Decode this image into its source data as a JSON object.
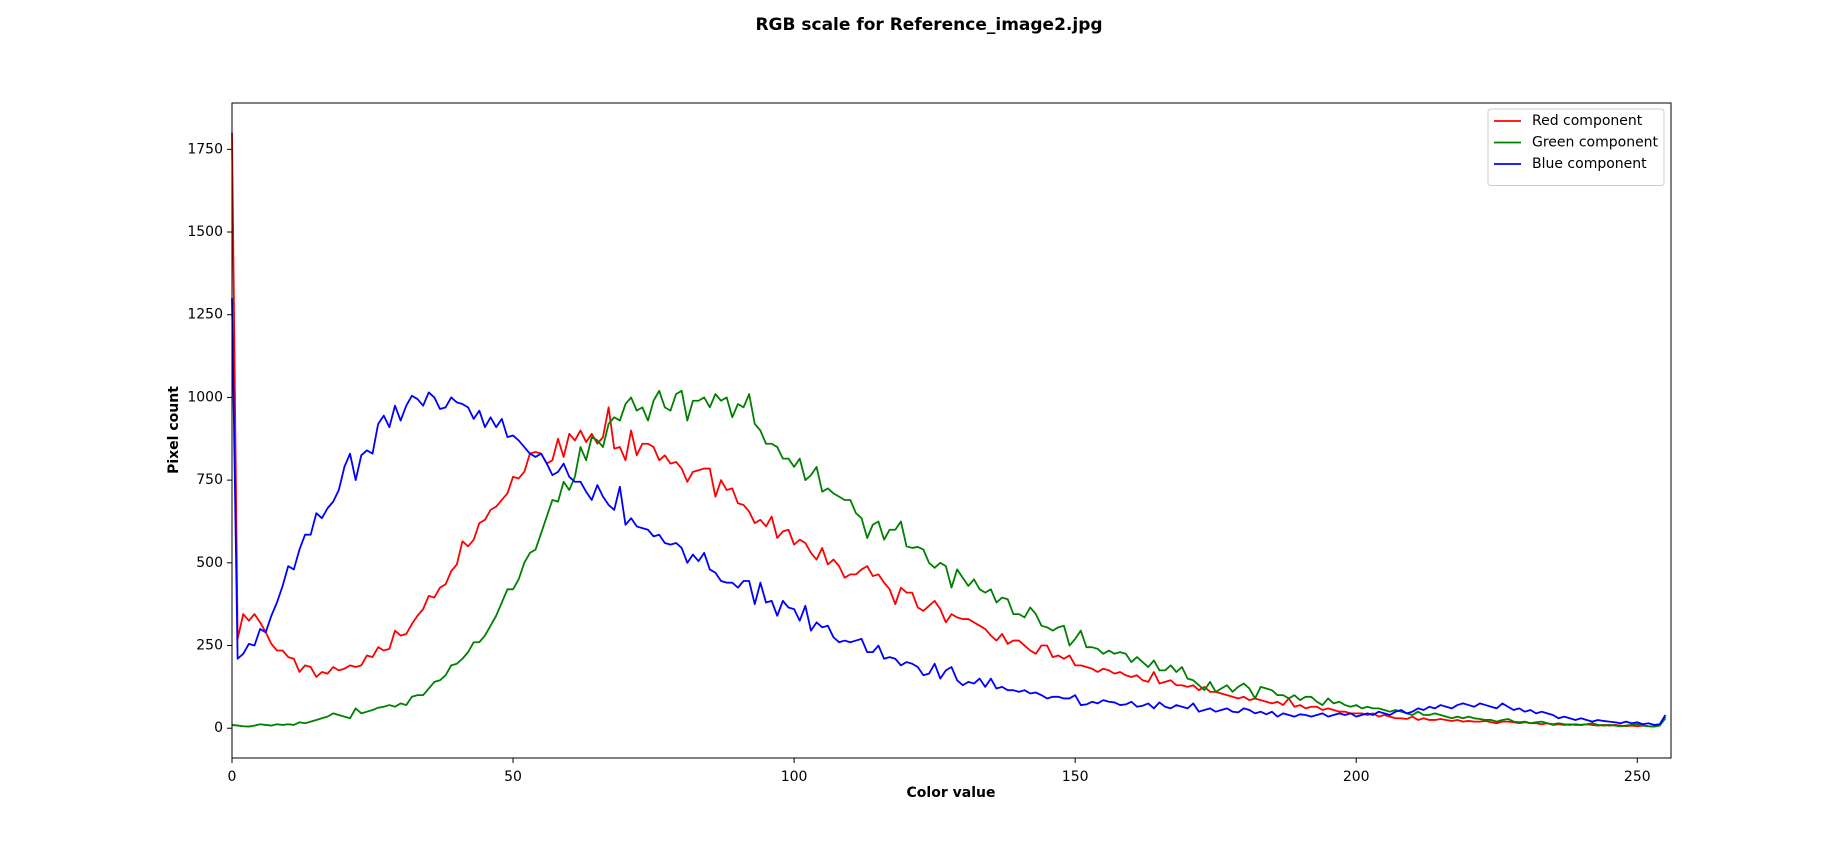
{
  "chart_data": {
    "type": "line",
    "title": "RGB scale for Reference_image2.jpg",
    "xlabel": "Color value",
    "ylabel": "Pixel count",
    "xlim": [
      0,
      256
    ],
    "ylim": [
      -90,
      1890
    ],
    "xticks": [
      0,
      50,
      100,
      150,
      200,
      250
    ],
    "yticks": [
      0,
      250,
      500,
      750,
      1000,
      1250,
      1500,
      1750
    ],
    "grid": false,
    "legend": "upper right",
    "x": [
      0,
      1,
      2,
      3,
      4,
      5,
      6,
      7,
      8,
      9,
      10,
      11,
      12,
      13,
      14,
      15,
      16,
      17,
      18,
      19,
      20,
      21,
      22,
      23,
      24,
      25,
      26,
      27,
      28,
      29,
      30,
      31,
      32,
      33,
      34,
      35,
      36,
      37,
      38,
      39,
      40,
      41,
      42,
      43,
      44,
      45,
      46,
      47,
      48,
      49,
      50,
      51,
      52,
      53,
      54,
      55,
      56,
      57,
      58,
      59,
      60,
      61,
      62,
      63,
      64,
      65,
      66,
      67,
      68,
      69,
      70,
      71,
      72,
      73,
      74,
      75,
      76,
      77,
      78,
      79,
      80,
      81,
      82,
      83,
      84,
      85,
      86,
      87,
      88,
      89,
      90,
      91,
      92,
      93,
      94,
      95,
      96,
      97,
      98,
      99,
      100,
      101,
      102,
      103,
      104,
      105,
      106,
      107,
      108,
      109,
      110,
      111,
      112,
      113,
      114,
      115,
      116,
      117,
      118,
      119,
      120,
      121,
      122,
      123,
      124,
      125,
      126,
      127,
      128,
      129,
      130,
      131,
      132,
      133,
      134,
      135,
      136,
      137,
      138,
      139,
      140,
      141,
      142,
      143,
      144,
      145,
      146,
      147,
      148,
      149,
      150,
      151,
      152,
      153,
      154,
      155,
      156,
      157,
      158,
      159,
      160,
      161,
      162,
      163,
      164,
      165,
      166,
      167,
      168,
      169,
      170,
      171,
      172,
      173,
      174,
      175,
      176,
      177,
      178,
      179,
      180,
      181,
      182,
      183,
      184,
      185,
      186,
      187,
      188,
      189,
      190,
      191,
      192,
      193,
      194,
      195,
      196,
      197,
      198,
      199,
      200,
      201,
      202,
      203,
      204,
      205,
      206,
      207,
      208,
      209,
      210,
      211,
      212,
      213,
      214,
      215,
      216,
      217,
      218,
      219,
      220,
      221,
      222,
      223,
      224,
      225,
      226,
      227,
      228,
      229,
      230,
      231,
      232,
      233,
      234,
      235,
      236,
      237,
      238,
      239,
      240,
      241,
      242,
      243,
      244,
      245,
      246,
      247,
      248,
      249,
      250,
      251,
      252,
      253,
      254,
      255
    ],
    "series": [
      {
        "name": "Red component",
        "color": "#ff0000",
        "values": [
          1800,
          270,
          345,
          325,
          345,
          320,
          290,
          255,
          235,
          235,
          215,
          210,
          170,
          190,
          185,
          155,
          170,
          165,
          185,
          175,
          180,
          190,
          185,
          190,
          220,
          215,
          245,
          235,
          240,
          295,
          280,
          285,
          315,
          340,
          360,
          400,
          395,
          425,
          435,
          475,
          495,
          565,
          550,
          570,
          620,
          630,
          660,
          670,
          690,
          710,
          760,
          755,
          775,
          830,
          835,
          830,
          800,
          810,
          875,
          820,
          890,
          870,
          900,
          865,
          890,
          860,
          880,
          970,
          845,
          850,
          810,
          900,
          825,
          860,
          860,
          850,
          810,
          825,
          800,
          805,
          785,
          745,
          775,
          780,
          785,
          785,
          700,
          750,
          720,
          725,
          680,
          675,
          655,
          620,
          630,
          610,
          640,
          575,
          595,
          600,
          555,
          570,
          560,
          530,
          510,
          545,
          495,
          510,
          490,
          455,
          465,
          465,
          480,
          490,
          460,
          465,
          440,
          420,
          375,
          425,
          410,
          410,
          365,
          355,
          370,
          385,
          360,
          320,
          345,
          335,
          330,
          330,
          320,
          310,
          300,
          280,
          265,
          285,
          255,
          265,
          265,
          250,
          235,
          225,
          250,
          250,
          215,
          220,
          210,
          220,
          190,
          190,
          185,
          180,
          170,
          180,
          175,
          165,
          170,
          160,
          155,
          160,
          145,
          140,
          170,
          135,
          140,
          145,
          130,
          130,
          125,
          130,
          115,
          125,
          110,
          110,
          105,
          100,
          95,
          90,
          95,
          85,
          90,
          85,
          80,
          75,
          80,
          70,
          90,
          65,
          70,
          60,
          65,
          65,
          55,
          60,
          55,
          50,
          50,
          45,
          45,
          45,
          40,
          45,
          35,
          40,
          35,
          30,
          30,
          28,
          35,
          25,
          30,
          25,
          25,
          28,
          25,
          22,
          25,
          20,
          22,
          20,
          20,
          22,
          18,
          15,
          20,
          20,
          18,
          15,
          18,
          15,
          15,
          12,
          15,
          10,
          12,
          10,
          12,
          10,
          10,
          12,
          10,
          8,
          10,
          8,
          10,
          8,
          6,
          8,
          6,
          8,
          6,
          5,
          10,
          35
        ]
      },
      {
        "name": "Green component",
        "color": "#008000",
        "values": [
          10,
          8,
          6,
          5,
          8,
          12,
          10,
          8,
          12,
          10,
          12,
          10,
          18,
          15,
          20,
          25,
          30,
          35,
          45,
          40,
          35,
          30,
          60,
          45,
          50,
          55,
          62,
          65,
          70,
          65,
          75,
          70,
          95,
          100,
          100,
          120,
          140,
          145,
          160,
          190,
          195,
          210,
          230,
          260,
          260,
          280,
          310,
          340,
          380,
          420,
          420,
          450,
          500,
          530,
          540,
          590,
          640,
          690,
          685,
          745,
          720,
          760,
          850,
          810,
          880,
          870,
          850,
          920,
          940,
          930,
          980,
          1000,
          960,
          970,
          930,
          990,
          1020,
          970,
          960,
          1010,
          1020,
          930,
          990,
          990,
          1000,
          970,
          1010,
          990,
          1000,
          940,
          980,
          970,
          1010,
          920,
          900,
          860,
          860,
          850,
          815,
          815,
          790,
          815,
          750,
          765,
          790,
          715,
          725,
          710,
          700,
          690,
          690,
          650,
          635,
          575,
          615,
          625,
          570,
          600,
          600,
          625,
          550,
          545,
          548,
          540,
          500,
          485,
          500,
          490,
          425,
          480,
          455,
          430,
          450,
          420,
          410,
          420,
          380,
          395,
          390,
          345,
          345,
          335,
          365,
          345,
          310,
          305,
          295,
          305,
          310,
          250,
          270,
          295,
          245,
          245,
          240,
          225,
          235,
          225,
          230,
          225,
          200,
          215,
          200,
          185,
          205,
          175,
          175,
          190,
          170,
          185,
          150,
          145,
          130,
          115,
          140,
          110,
          120,
          130,
          110,
          125,
          135,
          120,
          90,
          125,
          120,
          115,
          100,
          100,
          90,
          100,
          85,
          95,
          95,
          80,
          70,
          90,
          75,
          80,
          70,
          65,
          70,
          60,
          65,
          60,
          60,
          55,
          50,
          55,
          50,
          45,
          40,
          50,
          40,
          40,
          45,
          40,
          35,
          30,
          35,
          30,
          35,
          30,
          28,
          25,
          25,
          20,
          25,
          28,
          20,
          18,
          20,
          15,
          18,
          20,
          15,
          12,
          15,
          12,
          10,
          12,
          10,
          12,
          15,
          10,
          8,
          10,
          8,
          6,
          8,
          10,
          12,
          8,
          6,
          5,
          8,
          30
        ]
      },
      {
        "name": "Blue component",
        "color": "#0000ff",
        "values": [
          1300,
          210,
          225,
          255,
          250,
          300,
          290,
          340,
          380,
          430,
          490,
          480,
          540,
          585,
          585,
          650,
          635,
          665,
          685,
          720,
          790,
          830,
          750,
          825,
          840,
          830,
          920,
          945,
          910,
          975,
          930,
          975,
          1005,
          995,
          975,
          1015,
          1000,
          965,
          970,
          1000,
          985,
          980,
          970,
          935,
          960,
          910,
          940,
          910,
          935,
          880,
          885,
          870,
          850,
          830,
          820,
          830,
          800,
          765,
          775,
          800,
          760,
          745,
          745,
          715,
          690,
          735,
          700,
          675,
          660,
          730,
          615,
          635,
          610,
          605,
          600,
          580,
          585,
          560,
          555,
          560,
          545,
          500,
          525,
          505,
          530,
          480,
          470,
          445,
          440,
          440,
          425,
          445,
          445,
          375,
          440,
          380,
          385,
          340,
          385,
          365,
          360,
          325,
          370,
          295,
          320,
          305,
          310,
          275,
          260,
          265,
          260,
          265,
          270,
          230,
          230,
          250,
          210,
          215,
          210,
          190,
          200,
          195,
          185,
          160,
          165,
          195,
          150,
          175,
          185,
          145,
          130,
          140,
          135,
          150,
          125,
          150,
          120,
          125,
          115,
          115,
          110,
          115,
          105,
          108,
          100,
          90,
          95,
          95,
          90,
          90,
          100,
          70,
          72,
          80,
          75,
          85,
          80,
          78,
          70,
          72,
          80,
          65,
          68,
          75,
          60,
          78,
          65,
          60,
          70,
          65,
          60,
          75,
          50,
          55,
          60,
          50,
          55,
          60,
          50,
          48,
          60,
          55,
          45,
          50,
          42,
          50,
          35,
          45,
          40,
          35,
          42,
          40,
          35,
          40,
          45,
          35,
          40,
          45,
          40,
          45,
          35,
          40,
          45,
          40,
          50,
          45,
          40,
          50,
          55,
          45,
          50,
          60,
          55,
          65,
          60,
          70,
          65,
          60,
          70,
          75,
          70,
          65,
          75,
          70,
          65,
          60,
          75,
          65,
          55,
          60,
          50,
          55,
          45,
          50,
          45,
          40,
          30,
          35,
          30,
          25,
          30,
          25,
          20,
          25,
          22,
          20,
          18,
          15,
          20,
          15,
          18,
          12,
          15,
          10,
          12,
          40
        ]
      }
    ]
  }
}
